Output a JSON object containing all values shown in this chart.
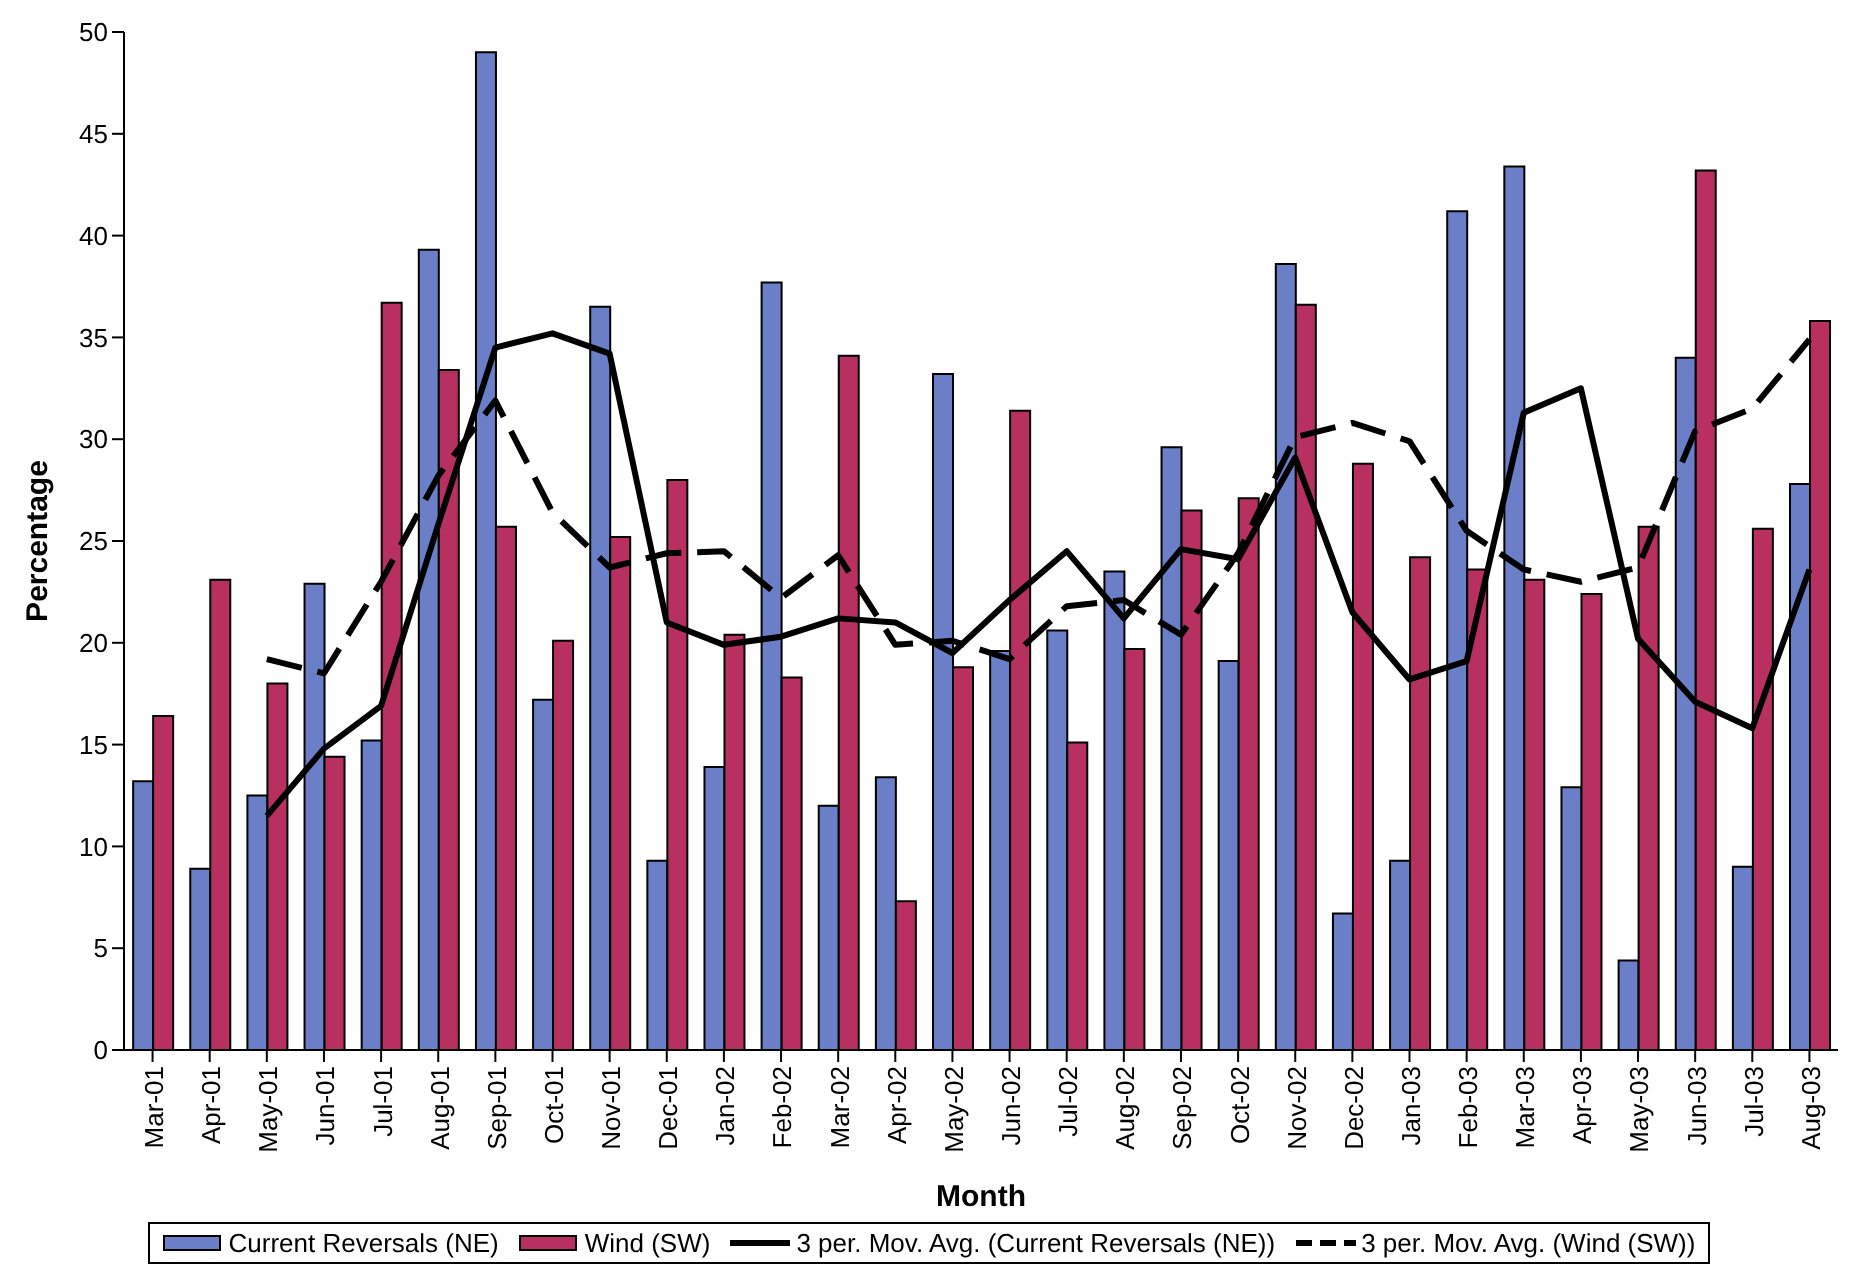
{
  "chart_data": {
    "type": "bar",
    "xlabel": "Month",
    "ylabel": "Percentage",
    "categories": [
      "Mar-01",
      "Apr-01",
      "May-01",
      "Jun-01",
      "Jul-01",
      "Aug-01",
      "Sep-01",
      "Oct-01",
      "Nov-01",
      "Dec-01",
      "Jan-02",
      "Feb-02",
      "Mar-02",
      "Apr-02",
      "May-02",
      "Jun-02",
      "Jul-02",
      "Aug-02",
      "Sep-02",
      "Oct-02",
      "Nov-02",
      "Dec-02",
      "Jan-03",
      "Feb-03",
      "Mar-03",
      "Apr-03",
      "May-03",
      "Jun-03",
      "Jul-03",
      "Aug-03"
    ],
    "series": [
      {
        "name": "Current Reversals (NE)",
        "color": "#6a7fc8",
        "values": [
          13.2,
          8.9,
          12.5,
          22.9,
          15.2,
          39.3,
          49,
          17.2,
          36.5,
          9.3,
          13.9,
          37.7,
          12,
          13.4,
          33.2,
          19.6,
          20.6,
          23.5,
          29.6,
          19.1,
          38.6,
          6.7,
          9.3,
          41.2,
          43.4,
          12.9,
          4.4,
          34,
          9,
          27.8
        ]
      },
      {
        "name": "Wind (SW)",
        "color": "#b8305f",
        "values": [
          16.4,
          23.1,
          18,
          14.4,
          36.7,
          33.4,
          25.7,
          20.1,
          25.2,
          28,
          20.4,
          18.3,
          34.1,
          7.3,
          18.8,
          31.4,
          15.1,
          19.7,
          26.5,
          27.1,
          36.6,
          28.8,
          24.2,
          23.6,
          23.1,
          22.4,
          25.7,
          43.2,
          25.6,
          35.8
        ]
      },
      {
        "name": "3 per. Mov. Avg. (Current Reversals (NE))",
        "type": "line",
        "line_style": "solid",
        "color": "#000000",
        "values": [
          null,
          null,
          11.5,
          14.8,
          16.9,
          25.8,
          34.5,
          35.2,
          34.2,
          21,
          19.9,
          20.3,
          21.2,
          21,
          19.5,
          22.1,
          24.5,
          21.2,
          24.6,
          24.1,
          29.1,
          21.5,
          18.2,
          19.1,
          31.3,
          32.5,
          20.2,
          17.1,
          15.8,
          23.6
        ]
      },
      {
        "name": "3 per. Mov. Avg. (Wind (SW))",
        "type": "line",
        "line_style": "dashed",
        "color": "#000000",
        "values": [
          null,
          null,
          19.2,
          18.5,
          23,
          28.2,
          31.9,
          26.4,
          23.7,
          24.4,
          24.5,
          22.2,
          24.3,
          19.9,
          20.1,
          19.2,
          21.8,
          22.1,
          20.4,
          24.4,
          30.1,
          30.8,
          29.9,
          25.5,
          23.6,
          23,
          23.7,
          30.4,
          31.5,
          34.9
        ]
      }
    ],
    "ylim": [
      0,
      50
    ],
    "yticks": [
      0,
      5,
      10,
      15,
      20,
      25,
      30,
      35,
      40,
      45,
      50
    ],
    "legend": "bottom",
    "marker": "none"
  }
}
